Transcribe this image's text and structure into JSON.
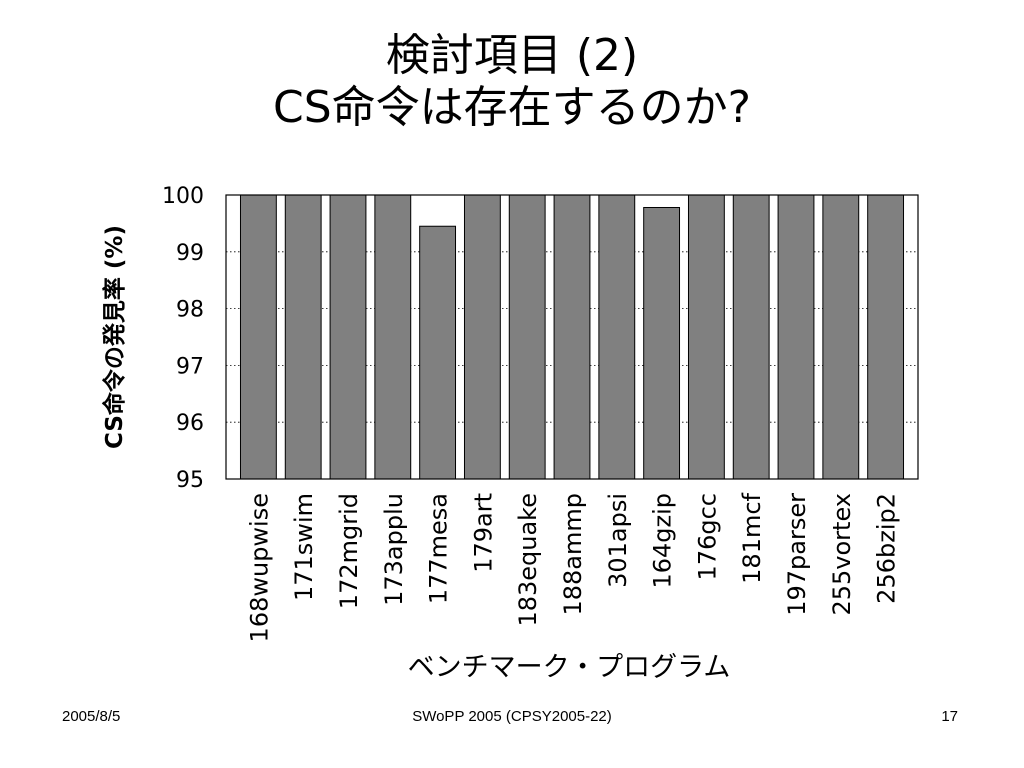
{
  "slide": {
    "title_line1": "検討項目 (2)",
    "title_line2": "CS命令は存在するのか?"
  },
  "chart_data": {
    "type": "bar",
    "title": "",
    "xlabel": "ベンチマーク・プログラム",
    "ylabel": "CS命令の発見率 (%)",
    "ylim": [
      95,
      100
    ],
    "yticks": [
      95,
      96,
      97,
      98,
      99,
      100
    ],
    "grid": true,
    "bar_color": "#808080",
    "categories": [
      "168wupwise",
      "171swim",
      "172mgrid",
      "173applu",
      "177mesa",
      "179art",
      "183equake",
      "188ammp",
      "301apsi",
      "164gzip",
      "176gcc",
      "181mcf",
      "197parser",
      "255vortex",
      "256bzip2"
    ],
    "values": [
      100,
      100,
      100,
      100,
      99.45,
      100,
      100,
      100,
      100,
      99.78,
      100,
      100,
      100,
      100,
      100
    ]
  },
  "footer": {
    "date": "2005/8/5",
    "center": "SWoPP 2005 (CPSY2005-22)",
    "page": "17"
  }
}
